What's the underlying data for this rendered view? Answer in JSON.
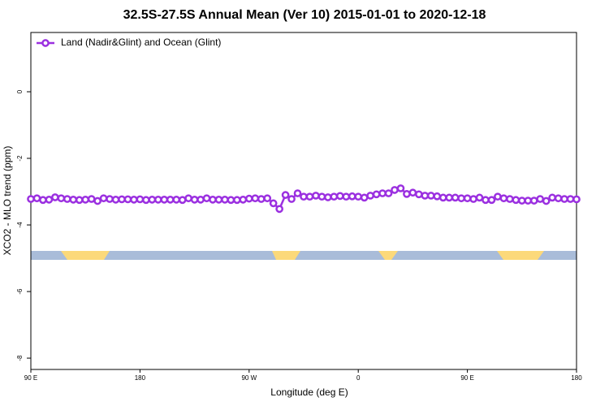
{
  "chart_data": {
    "type": "line",
    "title": "32.5S-27.5S Annual Mean (Ver 10)   2015-01-01 to 2020-12-18",
    "x_label": "Longitude (deg E)",
    "y_label": "XCO2 - MLO trend (ppm)",
    "x": [
      90,
      95,
      100,
      105,
      110,
      115,
      120,
      125,
      130,
      135,
      140,
      145,
      150,
      155,
      160,
      165,
      170,
      175,
      180,
      185,
      190,
      195,
      200,
      205,
      210,
      215,
      220,
      225,
      230,
      235,
      240,
      245,
      250,
      255,
      260,
      265,
      270,
      275,
      280,
      285,
      290,
      295,
      300,
      305,
      310,
      315,
      320,
      325,
      330,
      335,
      340,
      345,
      350,
      355,
      360,
      365,
      370,
      375,
      380,
      385,
      390,
      395,
      400,
      405,
      410,
      415,
      420,
      425,
      430,
      435,
      440,
      445,
      450,
      455,
      460,
      465,
      470,
      475,
      480,
      485,
      490,
      495,
      500,
      505,
      510,
      515,
      520,
      525,
      530,
      535,
      540
    ],
    "series": [
      {
        "name": "Land (Nadir&Glint) and Ocean (Glint)",
        "color": "#9b30e0",
        "values": [
          -3.22,
          -3.2,
          -3.25,
          -3.24,
          -3.17,
          -3.2,
          -3.22,
          -3.24,
          -3.25,
          -3.24,
          -3.22,
          -3.28,
          -3.2,
          -3.22,
          -3.24,
          -3.23,
          -3.23,
          -3.24,
          -3.23,
          -3.25,
          -3.24,
          -3.24,
          -3.24,
          -3.24,
          -3.24,
          -3.25,
          -3.2,
          -3.24,
          -3.24,
          -3.2,
          -3.24,
          -3.24,
          -3.24,
          -3.25,
          -3.25,
          -3.24,
          -3.21,
          -3.2,
          -3.22,
          -3.2,
          -3.35,
          -3.52,
          -3.1,
          -3.22,
          -3.05,
          -3.15,
          -3.15,
          -3.12,
          -3.15,
          -3.17,
          -3.15,
          -3.13,
          -3.15,
          -3.14,
          -3.15,
          -3.18,
          -3.12,
          -3.08,
          -3.05,
          -3.05,
          -2.95,
          -2.9,
          -3.07,
          -3.03,
          -3.08,
          -3.12,
          -3.12,
          -3.14,
          -3.18,
          -3.18,
          -3.18,
          -3.2,
          -3.2,
          -3.22,
          -3.18,
          -3.25,
          -3.25,
          -3.15,
          -3.2,
          -3.22,
          -3.25,
          -3.27,
          -3.27,
          -3.27,
          -3.22,
          -3.28,
          -3.18,
          -3.2,
          -3.22,
          -3.22,
          -3.23
        ]
      }
    ],
    "xlim": [
      90,
      540
    ],
    "xticks": [
      {
        "value": 90,
        "label": "90 E"
      },
      {
        "value": 180,
        "label": "180"
      },
      {
        "value": 270,
        "label": "90 W"
      },
      {
        "value": 360,
        "label": "0"
      },
      {
        "value": 450,
        "label": "90 E"
      },
      {
        "value": 540,
        "label": "180"
      }
    ],
    "ylim": [
      -8.34,
      1.78
    ],
    "yticks": [
      0,
      -2,
      -4,
      -6,
      -8
    ],
    "legend": "top-left"
  }
}
